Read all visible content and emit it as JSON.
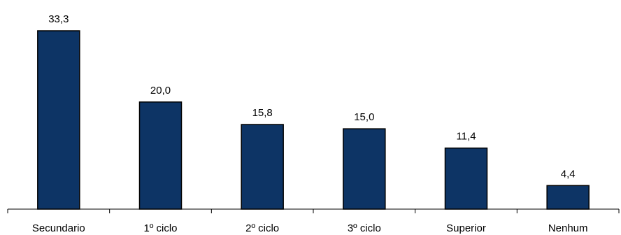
{
  "chart_data": {
    "type": "bar",
    "categories": [
      "Secundario",
      "1º ciclo",
      "2º ciclo",
      "3º ciclo",
      "Superior",
      "Nenhum"
    ],
    "values": [
      33.3,
      20.0,
      15.8,
      15.0,
      11.4,
      4.4
    ],
    "value_labels": [
      "33,3",
      "20,0",
      "15,8",
      "15,0",
      "11,4",
      "4,4"
    ],
    "title": "",
    "xlabel": "",
    "ylabel": "",
    "ylim": [
      0,
      33.3
    ],
    "grid": false,
    "legend": "none",
    "bar_color": "#0d3465"
  }
}
